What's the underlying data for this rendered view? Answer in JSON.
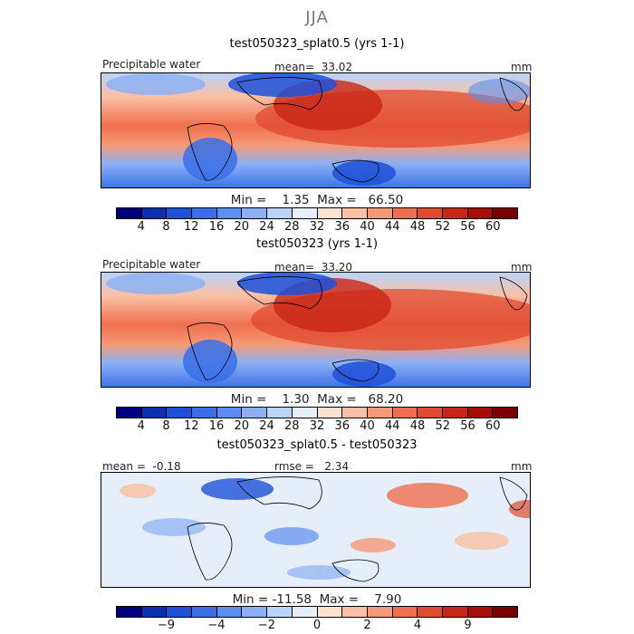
{
  "season": "JJA",
  "panels": [
    {
      "title": "test050323_splat0.5 (yrs 1-1)",
      "left_label": "Precipitable water",
      "center_label": "mean=  33.02",
      "right_label": "mm",
      "min_max": "Min =    1.35  Max =   66.50",
      "colorbar": {
        "colors": [
          "#00007f",
          "#0a2fb0",
          "#1f50d8",
          "#3a6fe6",
          "#5d8ff0",
          "#8bb0f5",
          "#bad4f9",
          "#e6eef9",
          "#fbe3d3",
          "#f9c0a3",
          "#f59a78",
          "#ef6f4e",
          "#e04a30",
          "#c82617",
          "#a80e07",
          "#780000"
        ],
        "labels": [
          "4",
          "8",
          "12",
          "16",
          "20",
          "24",
          "28",
          "32",
          "36",
          "40",
          "44",
          "48",
          "52",
          "56",
          "60"
        ]
      }
    },
    {
      "title": "test050323 (yrs 1-1)",
      "left_label": "Precipitable water",
      "center_label": "mean=  33.20",
      "right_label": "mm",
      "min_max": "Min =    1.30  Max =   68.20",
      "colorbar": {
        "colors": [
          "#00007f",
          "#0a2fb0",
          "#1f50d8",
          "#3a6fe6",
          "#5d8ff0",
          "#8bb0f5",
          "#bad4f9",
          "#e6eef9",
          "#fbe3d3",
          "#f9c0a3",
          "#f59a78",
          "#ef6f4e",
          "#e04a30",
          "#c82617",
          "#a80e07",
          "#780000"
        ],
        "labels": [
          "4",
          "8",
          "12",
          "16",
          "20",
          "24",
          "28",
          "32",
          "36",
          "40",
          "44",
          "48",
          "52",
          "56",
          "60"
        ]
      }
    },
    {
      "title": "test050323_splat0.5 - test050323",
      "left_label": "mean =  -0.18",
      "center_label": "rmse =   2.34",
      "right_label": "mm",
      "min_max": "Min = -11.58  Max =    7.90",
      "colorbar": {
        "colors": [
          "#00007f",
          "#0a2fb0",
          "#1f50d8",
          "#3a6fe6",
          "#5d8ff0",
          "#8bb0f5",
          "#bad4f9",
          "#e6eef9",
          "#fbe3d3",
          "#f9c0a3",
          "#f59a78",
          "#ef6f4e",
          "#e04a30",
          "#c82617",
          "#a80e07",
          "#780000"
        ],
        "labels": [
          "-9",
          "-4",
          "-2",
          "0",
          "2",
          "4",
          "9"
        ]
      }
    }
  ]
}
